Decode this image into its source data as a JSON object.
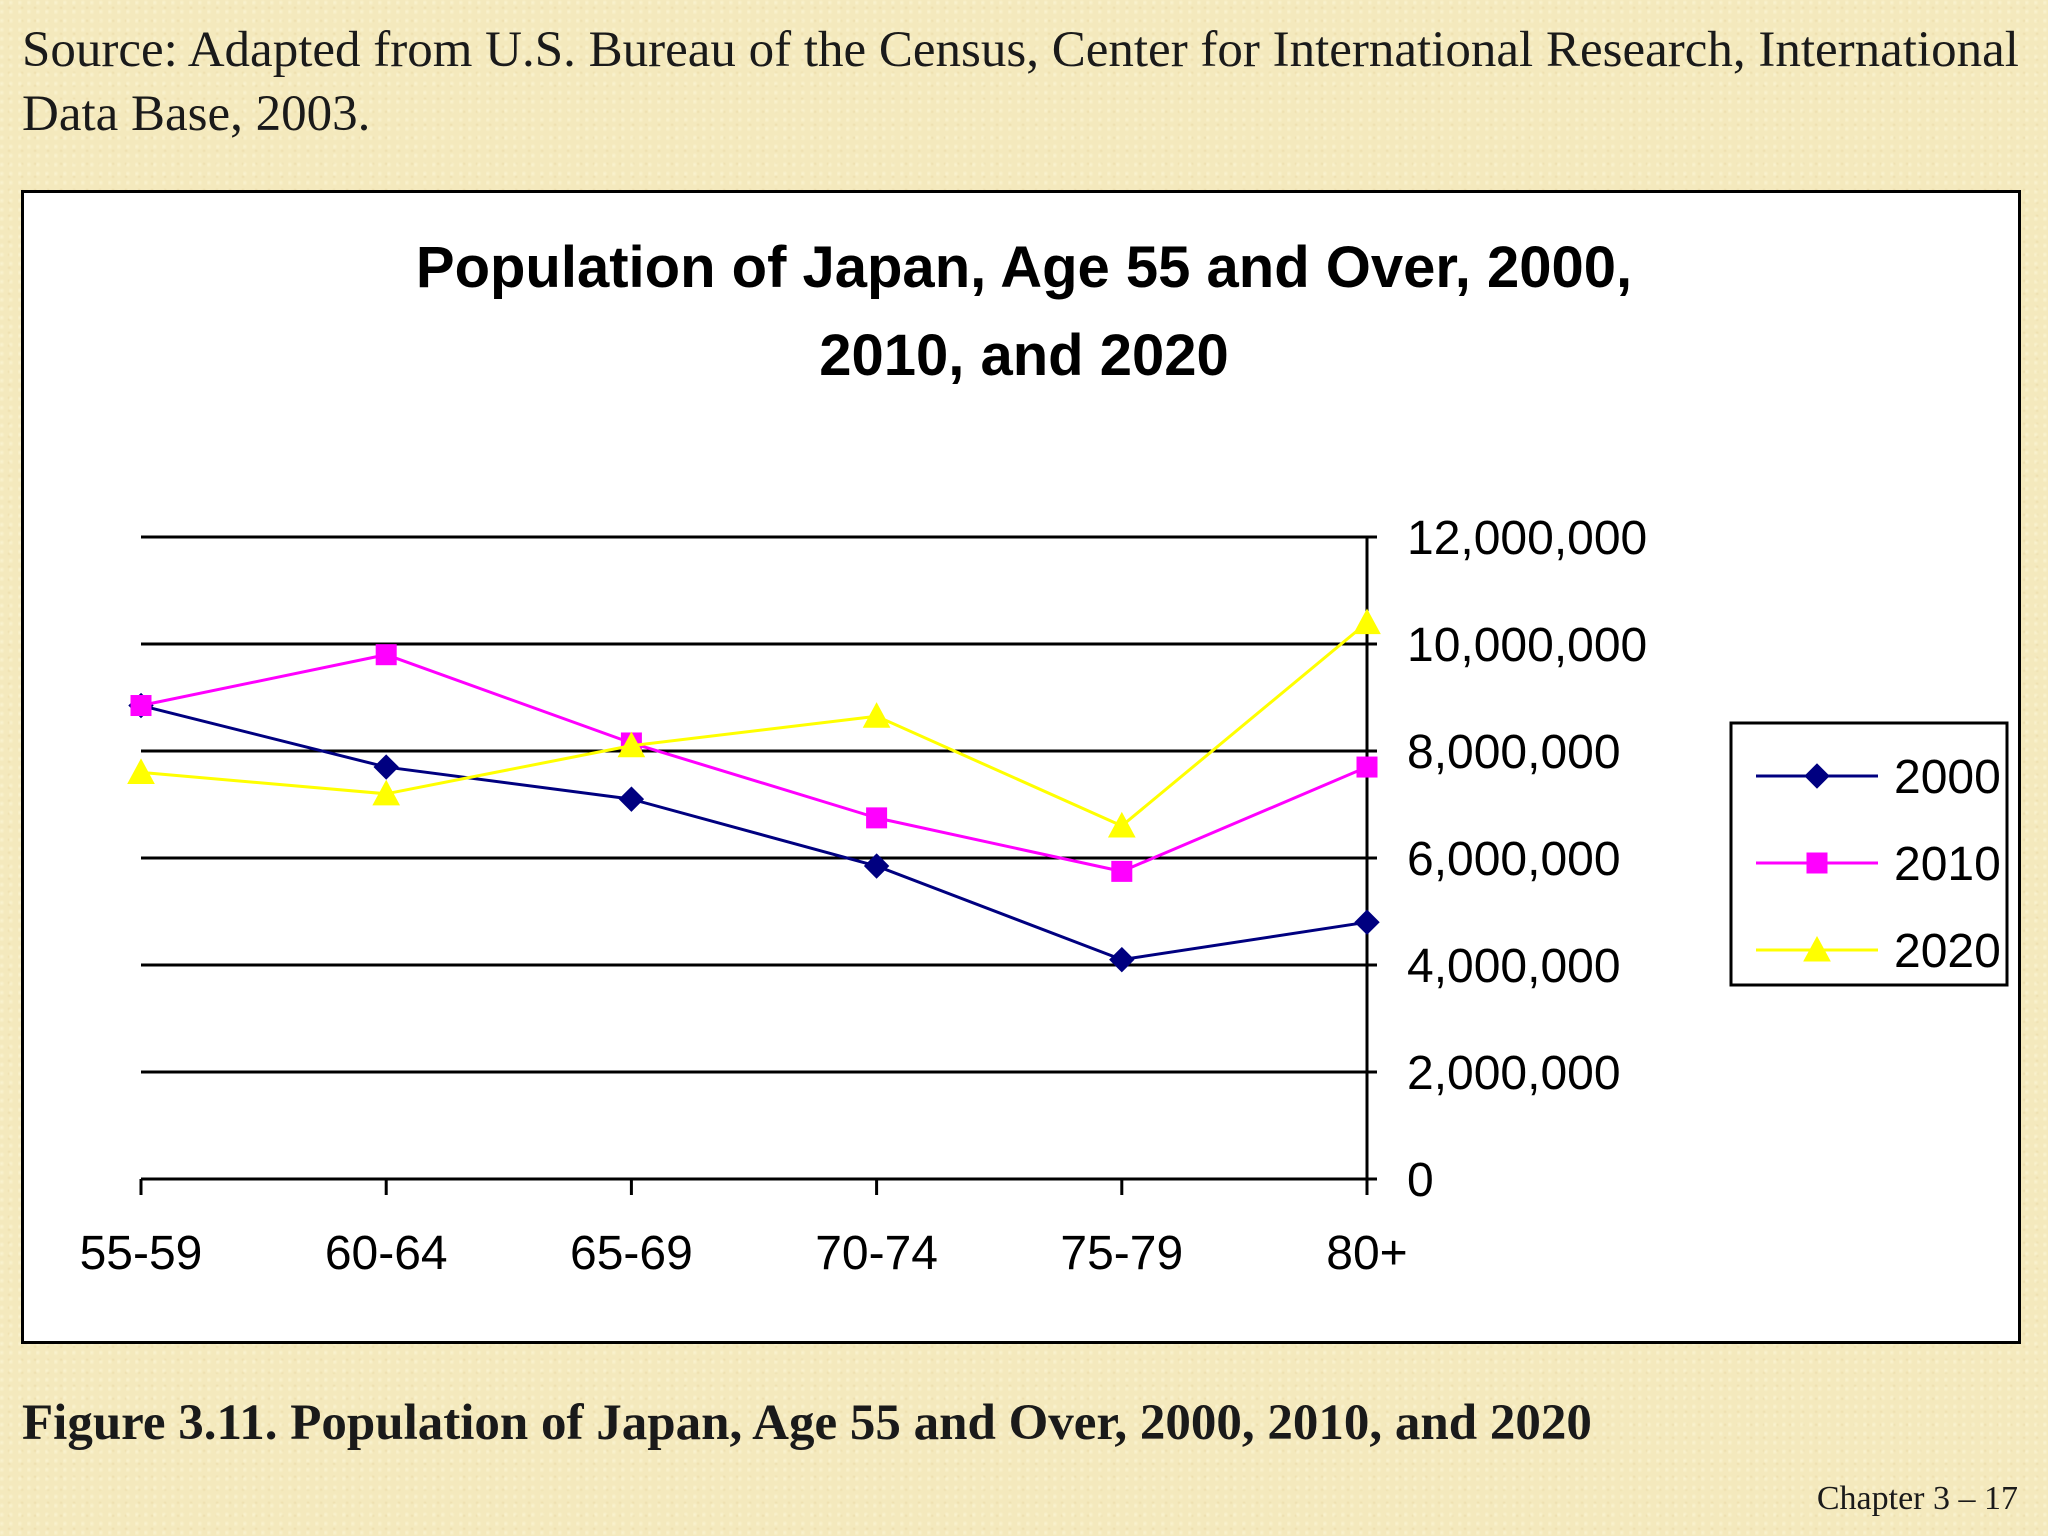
{
  "source_text": "Source: Adapted from U.S. Bureau of the Census, Center for International Research, International Data Base, 2003.",
  "figure_caption": "Figure 3.11. Population of Japan, Age 55 and Over, 2000, 2010, and 2020",
  "footer_text": "Chapter 3 – 17",
  "chart_data": {
    "type": "line",
    "title": "Population of Japan, Age 55 and Over, 2000, 2010, and 2020",
    "title_lines": [
      "Population of Japan, Age 55 and Over, 2000,",
      "2010, and 2020"
    ],
    "xlabel": "",
    "ylabel": "",
    "categories": [
      "55-59",
      "60-64",
      "65-69",
      "70-74",
      "75-79",
      "80+"
    ],
    "ylim": [
      0,
      12000000
    ],
    "yticks": [
      0,
      2000000,
      4000000,
      6000000,
      8000000,
      10000000,
      12000000
    ],
    "ytick_labels": [
      "0",
      "2,000,000",
      "4,000,000",
      "6,000,000",
      "8,000,000",
      "10,000,000",
      "12,000,000"
    ],
    "y_axis_side": "right",
    "grid": true,
    "legend_position": "right",
    "series": [
      {
        "name": "2000",
        "color": "#000080",
        "marker": "diamond",
        "values": [
          8850000,
          7700000,
          7100000,
          5850000,
          4100000,
          4800000
        ]
      },
      {
        "name": "2010",
        "color": "#ff00ff",
        "marker": "square",
        "values": [
          8850000,
          9800000,
          8150000,
          6750000,
          5750000,
          7700000
        ]
      },
      {
        "name": "2020",
        "color": "#ffff00",
        "marker": "triangle",
        "values": [
          7600000,
          7200000,
          8100000,
          8650000,
          6600000,
          10400000
        ]
      }
    ]
  }
}
